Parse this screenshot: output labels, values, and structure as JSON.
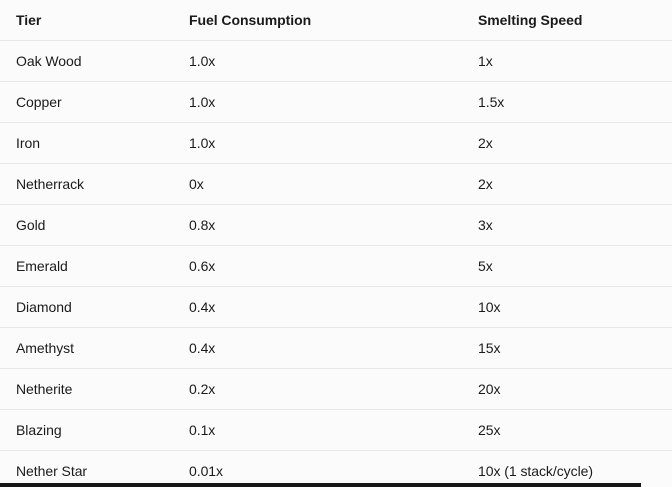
{
  "table": {
    "columns": [
      "Tier",
      "Fuel Consumption",
      "Smelting Speed"
    ],
    "rows": [
      [
        "Oak Wood",
        "1.0x",
        "1x"
      ],
      [
        "Copper",
        "1.0x",
        "1.5x"
      ],
      [
        "Iron",
        "1.0x",
        "2x"
      ],
      [
        "Netherrack",
        "0x",
        "2x"
      ],
      [
        "Gold",
        "0.8x",
        "3x"
      ],
      [
        "Emerald",
        "0.6x",
        "5x"
      ],
      [
        "Diamond",
        "0.4x",
        "10x"
      ],
      [
        "Amethyst",
        "0.4x",
        "15x"
      ],
      [
        "Netherite",
        "0.2x",
        "20x"
      ],
      [
        "Blazing",
        "0.1x",
        "25x"
      ],
      [
        "Nether Star",
        "0.01x",
        "10x (1 stack/cycle)"
      ]
    ]
  },
  "colors": {
    "background": "#fbfbfb",
    "text": "#1b1b1b",
    "separator": "#e7e7e7",
    "bottom_bar": "#161616"
  }
}
